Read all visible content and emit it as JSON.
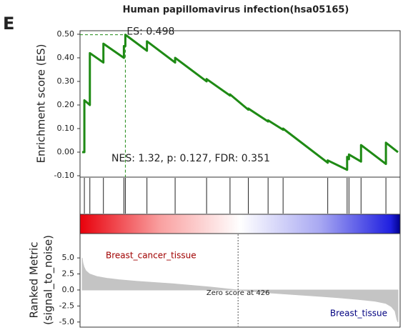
{
  "panel_label": "E",
  "chart_data": {
    "type": "gsea",
    "title": "Human papillomavirus infection(hsa05165)",
    "es": {
      "ylabel": "Enrichment score (ES)",
      "color": "#1e8a14",
      "x": [
        0,
        6,
        6,
        21,
        21,
        58,
        58,
        114,
        114,
        118,
        118,
        177,
        177,
        254,
        254,
        340,
        340,
        404,
        404,
        454,
        454,
        508,
        508,
        549,
        549,
        671,
        671,
        724,
        724,
        729,
        729,
        762,
        762,
        830,
        830,
        863
      ],
      "values": [
        0,
        0,
        0.22,
        0.2,
        0.42,
        0.38,
        0.46,
        0.4,
        0.45,
        0.45,
        0.498,
        0.43,
        0.47,
        0.38,
        0.4,
        0.3,
        0.31,
        0.24,
        0.245,
        0.18,
        0.185,
        0.13,
        0.135,
        0.095,
        0.1,
        -0.045,
        -0.035,
        -0.075,
        -0.02,
        -0.03,
        -0.01,
        -0.04,
        0.03,
        -0.05,
        0.04,
        0.0
      ],
      "ylim": [
        -0.106,
        0.515
      ],
      "yticks": [
        {
          "value": 0.5,
          "label": "0.50"
        },
        {
          "value": 0.4,
          "label": "0.40"
        },
        {
          "value": 0.3,
          "label": "0.30"
        },
        {
          "value": 0.2,
          "label": "0.20"
        },
        {
          "value": 0.1,
          "label": "0.10"
        },
        {
          "value": 0,
          "label": "0.00"
        },
        {
          "value": -0.1,
          "label": "-0.10"
        }
      ],
      "peak": {
        "x": 118,
        "value": 0.498,
        "label": "ES: 0.498"
      },
      "stats": "NES: 1.32, p: 0.127, FDR: 0.351"
    },
    "xlim": [
      0,
      863
    ],
    "hits": [
      6,
      21,
      58,
      114,
      118,
      177,
      254,
      340,
      404,
      454,
      508,
      549,
      671,
      724,
      729,
      762,
      830
    ],
    "metric": {
      "ylabel": [
        "Ranked Metric",
        "(signal_to_noise)"
      ],
      "color": "#c4c4c4",
      "x": [
        0,
        2,
        5,
        10,
        20,
        40,
        70,
        100,
        150,
        200,
        250,
        300,
        350,
        400,
        426,
        450,
        500,
        550,
        600,
        650,
        700,
        750,
        800,
        830,
        845,
        855,
        860,
        863
      ],
      "values": [
        5.0,
        4.2,
        3.6,
        3.0,
        2.5,
        2.1,
        1.8,
        1.6,
        1.35,
        1.15,
        0.95,
        0.7,
        0.45,
        0.15,
        0,
        -0.15,
        -0.4,
        -0.6,
        -0.8,
        -1.0,
        -1.2,
        -1.45,
        -1.75,
        -2.1,
        -2.6,
        -3.3,
        -4.6,
        -5.0
      ],
      "ylim": [
        -5.8,
        8.8
      ],
      "yticks": [
        {
          "value": 5,
          "label": "5.0"
        },
        {
          "value": 2.5,
          "label": "2.5"
        },
        {
          "value": 0,
          "label": "0.0"
        },
        {
          "value": -2.5,
          "label": "-2.5"
        },
        {
          "value": -5,
          "label": "-5.0"
        }
      ],
      "pos_label": "Breast_cancer_tissue",
      "neg_label": "Breast_tissue",
      "zero_cross": {
        "value": 426,
        "label": "Zero score at 426"
      }
    }
  }
}
